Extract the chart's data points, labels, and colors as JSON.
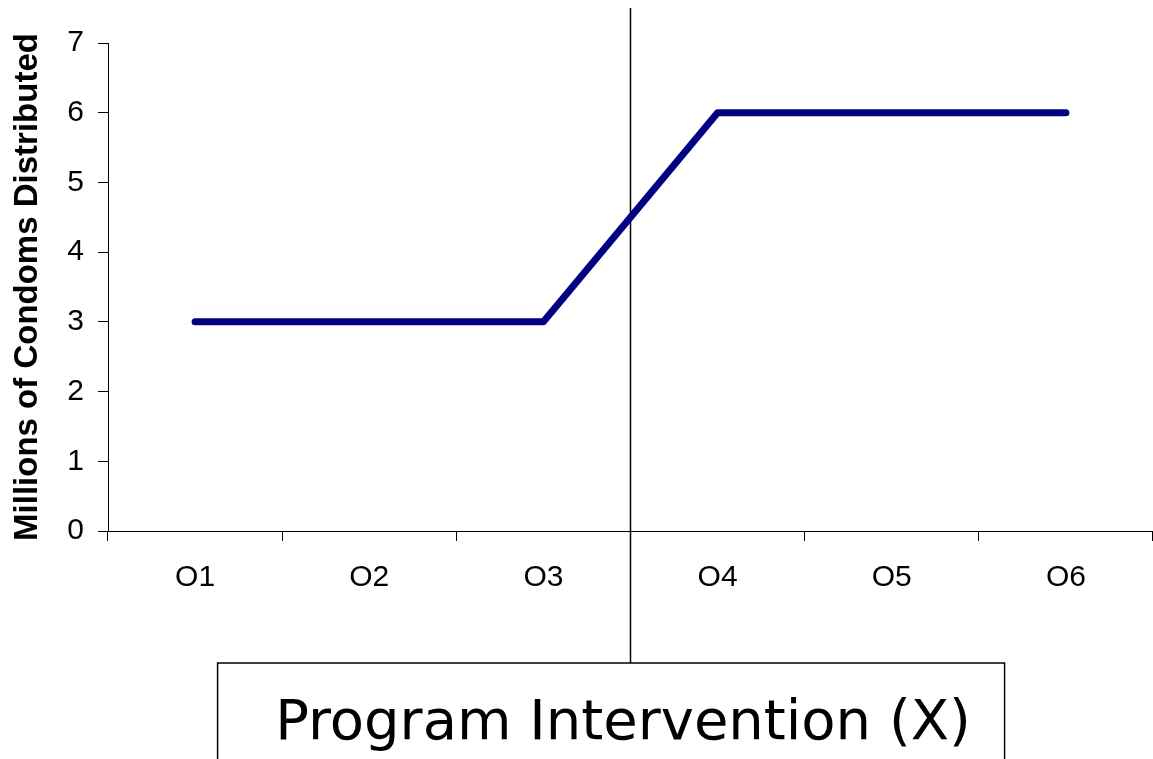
{
  "chart_data": {
    "type": "line",
    "ylabel": "Millions of Condoms Distributed",
    "categories": [
      "O1",
      "O2",
      "O3",
      "O4",
      "O5",
      "O6"
    ],
    "ylim": [
      0,
      7
    ],
    "yticks": [
      0,
      1,
      2,
      3,
      4,
      5,
      6,
      7
    ],
    "series": [
      {
        "color": "#000080",
        "values": [
          3,
          3,
          3,
          6,
          6,
          6
        ]
      }
    ],
    "annotations": [
      "Program Intervention (X)"
    ],
    "grid": false,
    "legend": false,
    "marker": "none",
    "line_style": "solid"
  }
}
